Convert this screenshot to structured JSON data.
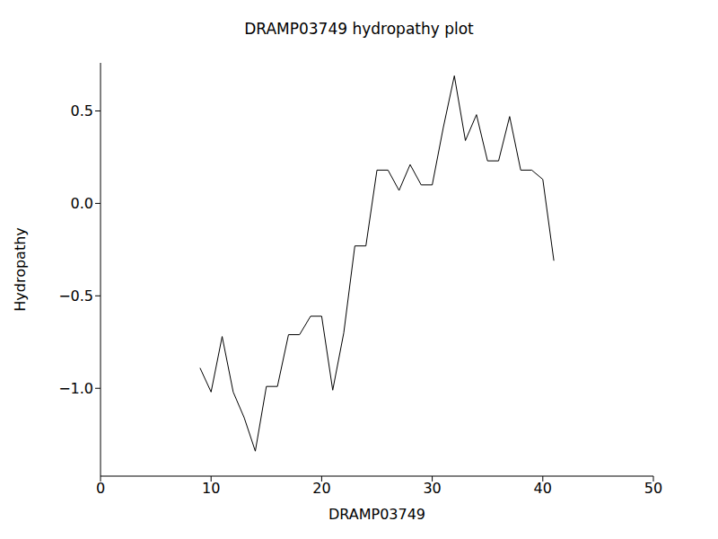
{
  "chart_data": {
    "type": "line",
    "title": "DRAMP03749 hydropathy plot",
    "x_label": "DRAMP03749",
    "y_label": "Hydropathy",
    "x": [
      9,
      10,
      11,
      12,
      13,
      14,
      15,
      16,
      17,
      18,
      19,
      20,
      21,
      22,
      23,
      24,
      25,
      26,
      27,
      28,
      29,
      30,
      31,
      32,
      33,
      34,
      35,
      36,
      37,
      38,
      39,
      40,
      41
    ],
    "values": [
      -0.89,
      -1.02,
      -0.72,
      -1.02,
      -1.16,
      -1.34,
      -0.99,
      -0.99,
      -0.71,
      -0.71,
      -0.61,
      -0.61,
      -1.01,
      -0.7,
      -0.23,
      -0.23,
      0.18,
      0.18,
      0.07,
      0.21,
      0.1,
      0.1,
      0.41,
      0.69,
      0.34,
      0.48,
      0.23,
      0.23,
      0.47,
      0.18,
      0.18,
      0.13,
      -0.31
    ],
    "color": "#000000",
    "xlim": [
      0,
      50
    ],
    "xticks": [
      0,
      10,
      20,
      30,
      40,
      50
    ],
    "ylim": [
      -1.475,
      0.76
    ],
    "yticks": [
      {
        "value": -1,
        "label": "−1.0"
      },
      {
        "value": -0.5,
        "label": "−0.5"
      },
      {
        "value": 0,
        "label": "0.0"
      },
      {
        "value": 0.5,
        "label": "0.5"
      }
    ]
  }
}
